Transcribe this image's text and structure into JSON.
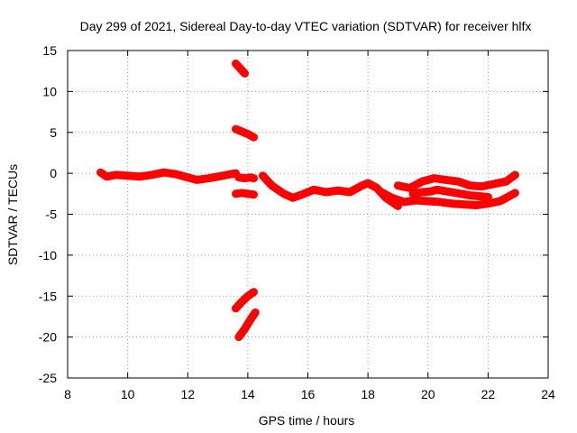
{
  "chart_data": {
    "type": "scatter",
    "title": "Day 299 of 2021, Sidereal Day-to-day VTEC variation (SDTVAR) for receiver hlfx",
    "xlabel": "GPS time / hours",
    "ylabel": "SDTVAR / TECUs",
    "xlim": [
      8,
      24
    ],
    "ylim": [
      -25,
      15
    ],
    "xticks": [
      "8",
      "10",
      "12",
      "14",
      "16",
      "18",
      "20",
      "22",
      "24"
    ],
    "yticks": [
      "15",
      "10",
      "5",
      "0",
      "-5",
      "-10",
      "-15",
      "-20",
      "-25"
    ],
    "grid": true,
    "marker_color": "#ff0000",
    "series": [
      {
        "name": "main-trace",
        "x": [
          9.1,
          9.3,
          9.6,
          10.0,
          10.4,
          10.8,
          11.2,
          11.6,
          12.0,
          12.3,
          12.7,
          13.0,
          13.3,
          13.6
        ],
        "y": [
          0.1,
          -0.4,
          -0.2,
          -0.3,
          -0.4,
          -0.2,
          0.1,
          -0.1,
          -0.5,
          -0.8,
          -0.6,
          -0.4,
          -0.2,
          0.0
        ]
      },
      {
        "name": "trace-after-gap",
        "x": [
          14.5,
          14.8,
          15.2,
          15.5,
          15.8,
          16.2,
          16.6,
          17.0,
          17.4,
          17.8,
          18.0,
          18.3,
          18.6,
          19.0
        ],
        "y": [
          -0.3,
          -1.5,
          -2.5,
          -3.0,
          -2.6,
          -2.0,
          -2.3,
          -2.1,
          -2.3,
          -1.5,
          -1.2,
          -1.8,
          -3.0,
          -4.0
        ]
      },
      {
        "name": "trace-upper-right",
        "x": [
          19.0,
          19.4,
          19.8,
          20.2,
          20.6,
          21.0,
          21.4,
          21.8,
          22.2,
          22.6,
          22.9
        ],
        "y": [
          -1.5,
          -1.8,
          -1.0,
          -0.6,
          -0.8,
          -1.0,
          -1.5,
          -1.6,
          -1.3,
          -1.0,
          -0.2
        ]
      },
      {
        "name": "trace-middle-right",
        "x": [
          19.5,
          19.8,
          20.1,
          20.3,
          21.4,
          21.7,
          22.0
        ],
        "y": [
          -2.5,
          -2.3,
          -2.2,
          -2.0,
          -2.7,
          -2.8,
          -2.9
        ]
      },
      {
        "name": "trace-lower-right",
        "x": [
          18.4,
          18.8,
          19.2,
          19.6,
          20.0,
          20.4,
          20.8,
          21.2,
          21.6,
          22.0,
          22.4,
          22.9
        ],
        "y": [
          -2.2,
          -3.0,
          -3.5,
          -3.3,
          -3.4,
          -3.5,
          -3.7,
          -3.8,
          -3.9,
          -3.7,
          -3.4,
          -2.4
        ]
      },
      {
        "name": "trace-pre-gap",
        "x": [
          13.7,
          13.9,
          14.1,
          14.2
        ],
        "y": [
          -0.5,
          -0.6,
          -0.5,
          -0.6
        ]
      },
      {
        "name": "segment-13",
        "x": [
          13.6,
          13.7,
          13.8,
          13.9
        ],
        "y": [
          13.4,
          13.0,
          12.6,
          12.2
        ]
      },
      {
        "name": "segment-5",
        "x": [
          13.6,
          13.8,
          14.0,
          14.2
        ],
        "y": [
          5.4,
          5.1,
          4.8,
          4.4
        ]
      },
      {
        "name": "segment-neg-2",
        "x": [
          13.6,
          13.8,
          14.0,
          14.2
        ],
        "y": [
          -2.5,
          -2.4,
          -2.5,
          -2.6
        ]
      },
      {
        "name": "segment-neg-15",
        "x": [
          13.6,
          13.8,
          14.0,
          14.2
        ],
        "y": [
          -16.5,
          -15.7,
          -15.0,
          -14.5
        ]
      },
      {
        "name": "segment-neg-19",
        "x": [
          13.7,
          13.9,
          14.1,
          14.25
        ],
        "y": [
          -20.0,
          -19.0,
          -17.8,
          -17.0
        ]
      }
    ]
  }
}
